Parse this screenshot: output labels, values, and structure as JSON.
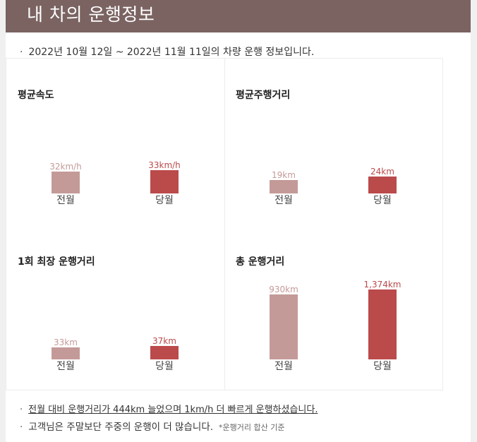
{
  "header": {
    "title": "내 차의 운행정보"
  },
  "period": {
    "text": "2022년 10월 12일 ~ 2022년 11월 11일의 차량 운행 정보입니다."
  },
  "cards": [
    {
      "title": "평균속도",
      "prev_value": "32km/h",
      "cur_value": "33km/h",
      "prev_label": "전월",
      "cur_label": "당월"
    },
    {
      "title": "평균주행거리",
      "prev_value": "19km",
      "cur_value": "24km",
      "prev_label": "전월",
      "cur_label": "당월"
    },
    {
      "title": "1회 최장 운행거리",
      "prev_value": "33km",
      "cur_value": "37km",
      "prev_label": "전월",
      "cur_label": "당월"
    },
    {
      "title": "총 운행거리",
      "prev_value": "930km",
      "cur_value": "1,374km",
      "prev_label": "전월",
      "cur_label": "당월"
    }
  ],
  "notes": {
    "line1": "전월 대비 운행거리가 444km 늘었으며 1km/h 더 빠르게 운행하셨습니다.",
    "line2": "고객님은 주말보단 주중의 운행이 더 많습니다.",
    "line2_note": "*운행거리 합산 기준",
    "bullet": "·"
  },
  "colors": {
    "header_bg": "#7a6361",
    "prev_bar": "#c49a98",
    "cur_bar": "#bb4a4b"
  }
}
